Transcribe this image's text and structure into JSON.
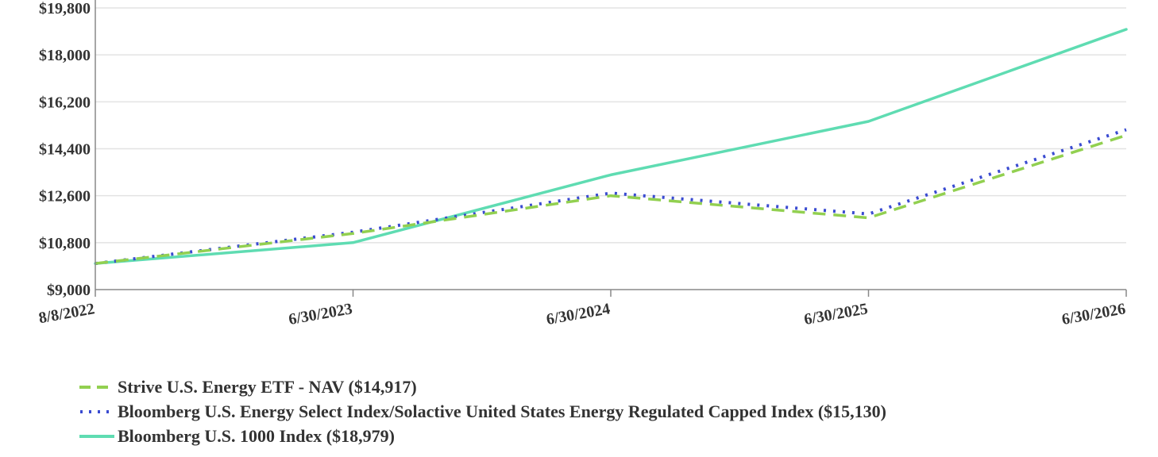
{
  "chart_data": {
    "type": "line",
    "title": "",
    "xlabel": "",
    "ylabel": "",
    "categories": [
      "8/8/2022",
      "6/30/2023",
      "6/30/2024",
      "6/30/2025",
      "6/30/2026"
    ],
    "ylim": [
      9000,
      19800
    ],
    "yticks": [
      9000,
      10800,
      12600,
      14400,
      16200,
      18000,
      19800
    ],
    "ytick_labels": [
      "$9,000",
      "$10,800",
      "$12,600",
      "$14,400",
      "$16,200",
      "$18,000",
      "$19,800"
    ],
    "grid": "horizontal",
    "legend_position": "bottom-left",
    "series": [
      {
        "name": "Strive U.S. Energy ETF - NAV ($14,917)",
        "values": [
          10000,
          11150,
          12600,
          11750,
          14917
        ],
        "color": "#92d050",
        "style": "dashed"
      },
      {
        "name": "Bloomberg U.S. Energy Select Index/Solactive United States Energy Regulated Capped Index ($15,130)",
        "values": [
          10000,
          11200,
          12700,
          11900,
          15130
        ],
        "color": "#3a4bd1",
        "style": "dotted"
      },
      {
        "name": "Bloomberg U.S. 1000 Index ($18,979)",
        "values": [
          10000,
          10800,
          13400,
          15450,
          18979
        ],
        "color": "#5fdcb2",
        "style": "solid"
      }
    ]
  }
}
